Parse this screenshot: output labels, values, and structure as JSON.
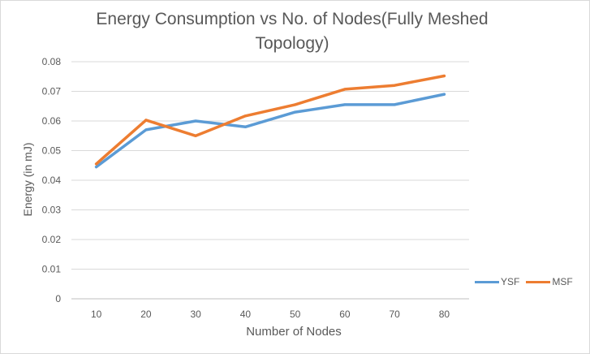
{
  "chart_data": {
    "type": "line",
    "title_line1": "Energy Consumption vs No. of Nodes(Fully Meshed",
    "title_line2": "Topology)",
    "xlabel": "Number of Nodes",
    "ylabel": "Energy (in mJ)",
    "categories": [
      "10",
      "20",
      "30",
      "40",
      "50",
      "60",
      "70",
      "80"
    ],
    "y_ticks": [
      "0",
      "0.01",
      "0.02",
      "0.03",
      "0.04",
      "0.05",
      "0.06",
      "0.07",
      "0.08"
    ],
    "ylim": [
      0,
      0.08
    ],
    "grid": true,
    "legend_position": "right",
    "series": [
      {
        "name": "YSF",
        "color": "#5b9bd5",
        "values": [
          0.0445,
          0.057,
          0.06,
          0.058,
          0.063,
          0.0655,
          0.0655,
          0.069
        ]
      },
      {
        "name": "MSF",
        "color": "#ed7d31",
        "values": [
          0.0455,
          0.0603,
          0.055,
          0.0617,
          0.0655,
          0.0707,
          0.072,
          0.0752
        ]
      }
    ]
  }
}
